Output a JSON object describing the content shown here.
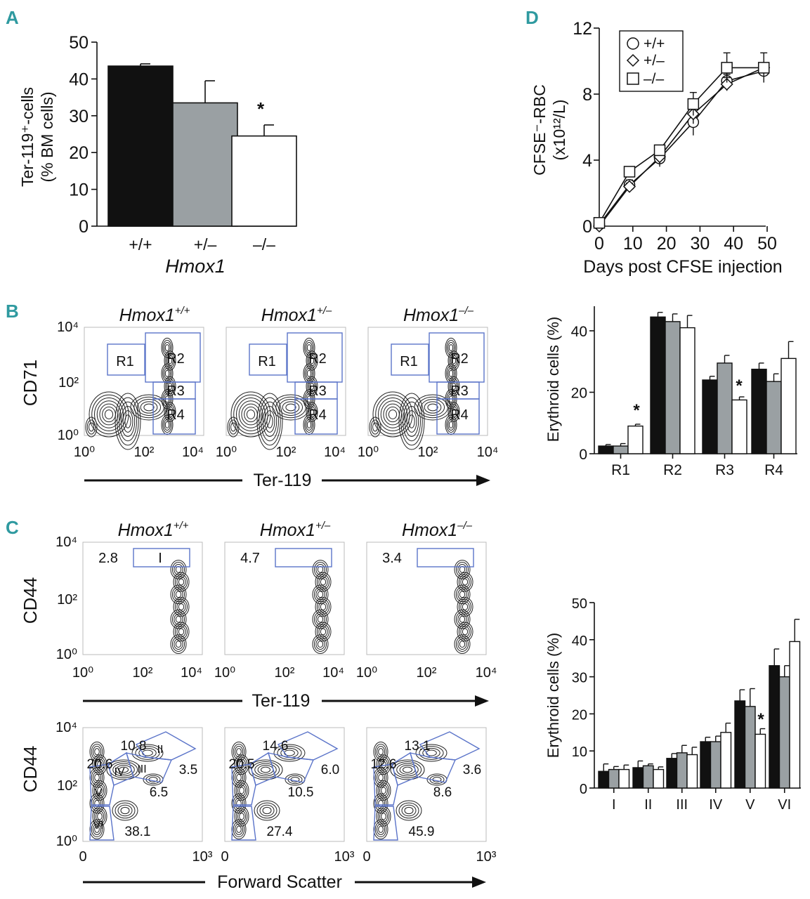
{
  "colors": {
    "wt": "#111111",
    "het": "#9aa0a3",
    "ko": "#ffffff",
    "gate": "#5b74c9",
    "panel_label": "#2f9aa0"
  },
  "panelA": {
    "label": "A",
    "ylabel_line1": "Ter-119⁺-cells",
    "ylabel_line2": "(% BM cells)",
    "yticks": [
      "0",
      "10",
      "20",
      "30",
      "40",
      "50"
    ],
    "xtitle": "Hmox1",
    "star": "*",
    "chart_data": {
      "type": "bar",
      "categories": [
        "+/+",
        "+/–",
        "–/–"
      ],
      "values": [
        43.5,
        33.5,
        24.5
      ],
      "errors": [
        0.6,
        6.0,
        3.0
      ],
      "ylim": [
        0,
        50
      ],
      "ylabel": "Ter-119⁺-cells (% BM cells)",
      "xlabel": "Hmox1"
    }
  },
  "panelD": {
    "label": "D",
    "ylabel_line1": "CFSE⁻-RBC",
    "ylabel_line2": "(x10¹²/L)",
    "xtitle": "Days post CFSE injection",
    "yticks": [
      "0",
      "4",
      "8",
      "12"
    ],
    "xticks": [
      "0",
      "10",
      "20",
      "30",
      "40",
      "50"
    ],
    "legend": [
      "+/+",
      "+/–",
      "–/–"
    ],
    "chart_data": {
      "type": "line",
      "x": [
        0,
        9,
        18,
        28,
        38,
        49
      ],
      "xlim": [
        0,
        50
      ],
      "ylim": [
        0,
        12
      ],
      "series": [
        {
          "name": "+/+",
          "marker": "circle",
          "values": [
            0.1,
            2.5,
            4.1,
            6.3,
            8.8,
            9.4
          ],
          "errors": [
            0.1,
            0.3,
            0.5,
            0.8,
            0.4,
            0.3
          ]
        },
        {
          "name": "+/–",
          "marker": "diamond",
          "values": [
            0.0,
            2.4,
            4.2,
            6.8,
            8.6,
            9.6
          ],
          "errors": [
            0.1,
            0.2,
            0.4,
            0.6,
            0.4,
            0.3
          ]
        },
        {
          "name": "–/–",
          "marker": "square",
          "values": [
            0.2,
            3.3,
            4.6,
            7.4,
            9.6,
            9.6
          ],
          "errors": [
            0.1,
            0.3,
            0.3,
            0.7,
            0.9,
            0.9
          ]
        }
      ]
    }
  },
  "panelB": {
    "label": "B",
    "genotype_base": "Hmox1",
    "genotypes": [
      "+/+",
      "+/–",
      "–/–"
    ],
    "ylabel": "CD71",
    "xlabel": "Ter-119",
    "xticks": [
      "10⁰",
      "10²",
      "10⁴"
    ],
    "yticks": [
      "10⁴",
      "10²",
      "10⁰"
    ],
    "gates": [
      "R1",
      "R2",
      "R3",
      "R4"
    ]
  },
  "panelBbar": {
    "ylabel": "Erythroid cells (%)",
    "yticks": [
      "0",
      "20",
      "40"
    ],
    "star": "*",
    "chart_data": {
      "type": "bar",
      "categories": [
        "R1",
        "R2",
        "R3",
        "R4"
      ],
      "series": [
        {
          "name": "+/+",
          "values": [
            2.5,
            44.5,
            24,
            27.5
          ],
          "errors": [
            0.5,
            1.5,
            1.2,
            2.0
          ]
        },
        {
          "name": "+/–",
          "values": [
            2.5,
            43,
            29.5,
            23.5
          ],
          "errors": [
            0.8,
            2.5,
            2.5,
            2.5
          ]
        },
        {
          "name": "–/–",
          "values": [
            9,
            41,
            17.5,
            31
          ],
          "errors": [
            0.6,
            4.0,
            1.0,
            5.5
          ]
        }
      ],
      "ylim": [
        0,
        48
      ],
      "ylabel": "Erythroid cells (%)"
    }
  },
  "panelC": {
    "label": "C",
    "ylabel": "CD44",
    "xlabel_top": "Ter-119",
    "xlabel_bottom": "Forward Scatter",
    "xticks_top": [
      "10⁰",
      "10²",
      "10⁴"
    ],
    "xticks_bottom": [
      "0",
      "10³"
    ],
    "yticks": [
      "10⁴",
      "10²",
      "10⁰"
    ],
    "gateI_label": "I",
    "top_values": [
      "2.8",
      "4.7",
      "3.4"
    ],
    "roman": [
      "I",
      "II",
      "III",
      "IV",
      "V",
      "VI"
    ],
    "fsc_values": [
      {
        "II": "10.8",
        "IV": "20.6",
        "III": "3.5",
        "V": "6.5",
        "VI": "38.1"
      },
      {
        "II": "14.6",
        "IV": "20.5",
        "III": "6.0",
        "V": "10.5",
        "VI": "27.4"
      },
      {
        "II": "13.1",
        "IV": "12.6",
        "III": "3.6",
        "V": "8.6",
        "VI": "45.9"
      }
    ]
  },
  "panelCbar": {
    "ylabel": "Erythroid cells (%)",
    "yticks": [
      "0",
      "10",
      "20",
      "30",
      "40",
      "50"
    ],
    "star": "*",
    "chart_data": {
      "type": "bar",
      "categories": [
        "I",
        "II",
        "III",
        "IV",
        "V",
        "VI"
      ],
      "series": [
        {
          "name": "+/+",
          "values": [
            4.5,
            5.5,
            8,
            12.5,
            23.5,
            33
          ],
          "errors": [
            2.0,
            1.8,
            1.3,
            1.2,
            3.0,
            4.5
          ]
        },
        {
          "name": "+/–",
          "values": [
            5,
            6,
            9.5,
            12.5,
            22,
            30
          ],
          "errors": [
            0.8,
            0.5,
            2.0,
            1.5,
            4.8,
            3.0
          ]
        },
        {
          "name": "–/–",
          "values": [
            5,
            5,
            9,
            15,
            14.5,
            39.5
          ],
          "errors": [
            1.2,
            0.7,
            2.0,
            2.5,
            1.5,
            6.0
          ]
        }
      ],
      "ylim": [
        0,
        50
      ],
      "ylabel": "Erythroid cells (%)"
    }
  }
}
